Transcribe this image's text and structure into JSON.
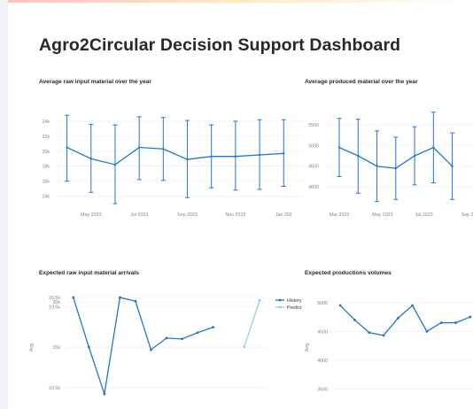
{
  "app": {
    "title": "Agro2Circular Decision Support Dashboard",
    "accent_color": "#1f77d0",
    "accent_light": "#8ecdf5"
  },
  "chart_data": [
    {
      "type": "line",
      "title": "Average raw input material over the year",
      "x_ticks": [
        "May 2023",
        "Jul 2023",
        "Sep 2023",
        "Nov 2023",
        "Jan 202"
      ],
      "y_ticks": [
        "14k",
        "16k",
        "18k",
        "20k",
        "22k",
        "24k"
      ],
      "ylim": [
        13000,
        26000
      ],
      "x": [
        0,
        1,
        2,
        3,
        4,
        5,
        6,
        7,
        8,
        9
      ],
      "xlim": [
        -0.5,
        9.8
      ],
      "tick_x": [
        1,
        3,
        5,
        7,
        9
      ],
      "values": [
        20500,
        19000,
        18200,
        20500,
        20300,
        18900,
        19300,
        19300,
        19500,
        19700
      ],
      "error_high": [
        24800,
        23600,
        23500,
        24600,
        24500,
        24100,
        23500,
        24000,
        24200,
        24200
      ],
      "error_low": [
        16000,
        14500,
        13000,
        16200,
        16100,
        13800,
        15100,
        14800,
        14900,
        15300
      ],
      "series": [
        {
          "values": [
            20500,
            19000,
            18200,
            20500,
            20300,
            18900,
            19300,
            19300,
            19500,
            19700
          ]
        }
      ]
    },
    {
      "type": "line",
      "title": "Average produced material over the year",
      "x_ticks": [
        "Mar 2023",
        "May 2023",
        "Jul 2023",
        "Sep 2"
      ],
      "y_ticks": [
        "4000",
        "4500",
        "5000",
        "5500"
      ],
      "ylim": [
        3600,
        5900
      ],
      "x": [
        0,
        1,
        2,
        3,
        4,
        5,
        6
      ],
      "xlim": [
        -0.8,
        7.1
      ],
      "tick_x": [
        0,
        2.3,
        4.5,
        6.8
      ],
      "values": [
        4950,
        4750,
        4500,
        4450,
        4750,
        4950,
        4500
      ],
      "error_high": [
        5650,
        5630,
        5350,
        5200,
        5450,
        5800,
        5300
      ],
      "error_low": [
        4250,
        3850,
        3650,
        3700,
        4050,
        4100,
        3700
      ],
      "series": [
        {
          "values": [
            4950,
            4750,
            4500,
            4450,
            4750,
            4950,
            4500
          ]
        }
      ]
    },
    {
      "type": "line",
      "title": "Expected raw input material arrivals",
      "ylabel": "Avg.",
      "y_ticks": [
        "10.5k",
        "15k",
        "19.5k",
        "20k",
        "20.5k"
      ],
      "ylim": [
        9700,
        20900
      ],
      "legend": "top-right",
      "series": [
        {
          "name": "History",
          "x": [
            0,
            1,
            2,
            3,
            4,
            5,
            6,
            7,
            8,
            9,
            10
          ],
          "values": [
            20500,
            15000,
            9800,
            20500,
            20100,
            14700,
            16000,
            15900,
            16600,
            17200,
            null
          ]
        },
        {
          "name": "Predict",
          "x": [
            11,
            12
          ],
          "values": [
            15000,
            20200
          ]
        }
      ]
    },
    {
      "type": "line",
      "title": "Expected productions volumes",
      "ylabel": "Avg.",
      "y_ticks": [
        "3500",
        "4000",
        "4500",
        "5000"
      ],
      "ylim": [
        3400,
        5150
      ],
      "x": [
        0,
        1,
        2,
        3,
        4,
        5,
        6,
        7,
        8,
        9
      ],
      "xlim": [
        -0.5,
        9.2
      ],
      "values": [
        4950,
        4700,
        4480,
        4430,
        4730,
        4950,
        4500,
        4650,
        4650,
        4750
      ],
      "series": [
        {
          "values": [
            4950,
            4700,
            4480,
            4430,
            4730,
            4950,
            4500,
            4650,
            4650,
            4750
          ]
        }
      ]
    }
  ]
}
